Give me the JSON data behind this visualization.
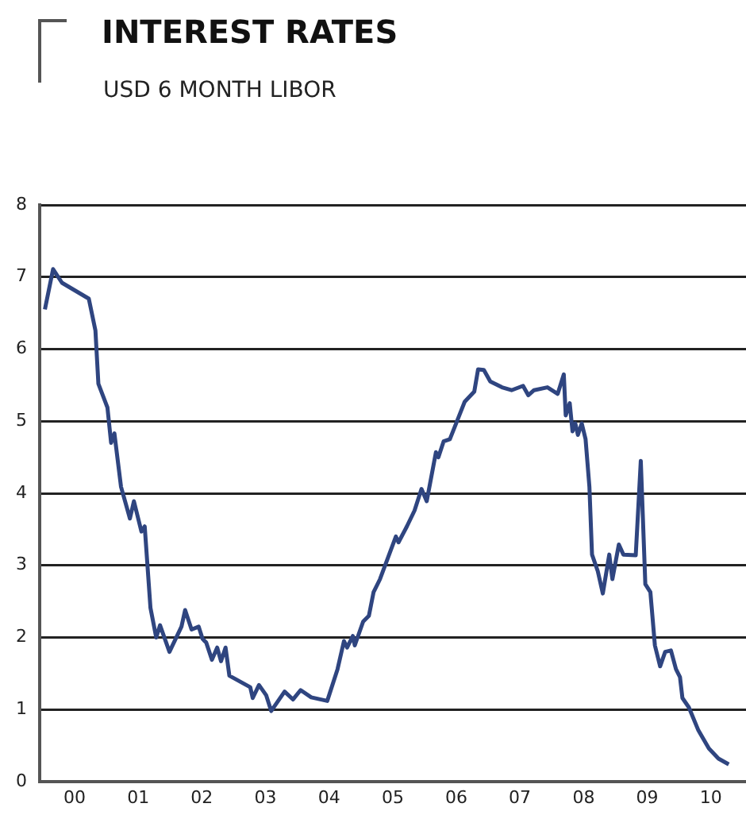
{
  "chart_data": {
    "type": "line",
    "title": "INTEREST RATES",
    "subtitle": "USD 6 MONTH LIBOR",
    "xlim": [
      "1999-12-13",
      "2011-01-19"
    ],
    "xticks": [
      {
        "value": "2000-07-01",
        "label": "00"
      },
      {
        "value": "2001-07-01",
        "label": "01"
      },
      {
        "value": "2002-07-01",
        "label": "02"
      },
      {
        "value": "2003-07-01",
        "label": "03"
      },
      {
        "value": "2004-07-01",
        "label": "04"
      },
      {
        "value": "2005-07-01",
        "label": "05"
      },
      {
        "value": "2006-07-01",
        "label": "06"
      },
      {
        "value": "2007-07-01",
        "label": "07"
      },
      {
        "value": "2008-07-01",
        "label": "08"
      },
      {
        "value": "2009-07-01",
        "label": "09"
      },
      {
        "value": "2010-07-01",
        "label": "10"
      }
    ],
    "ylim": [
      0,
      8
    ],
    "yticks": [
      0,
      1,
      2,
      3,
      4,
      5,
      6,
      7,
      8
    ],
    "grid": "y",
    "legend": false,
    "series": [
      {
        "color": "#2f4580",
        "x": [
          "2000-01-12",
          "2000-02-28",
          "2000-04-19",
          "2000-07-05",
          "2000-09-20",
          "2000-10-28",
          "2000-11-14",
          "2001-01-05",
          "2001-01-26",
          "2001-02-14",
          "2001-03-24",
          "2001-05-14",
          "2001-06-06",
          "2001-07-19",
          "2001-08-07",
          "2001-09-09",
          "2001-10-12",
          "2001-11-03",
          "2001-12-27",
          "2002-03-06",
          "2002-03-27",
          "2002-05-03",
          "2002-06-13",
          "2002-07-05",
          "2002-07-26",
          "2002-08-28",
          "2002-09-27",
          "2002-10-19",
          "2002-11-14",
          "2002-12-06",
          "2003-04-05",
          "2003-04-19",
          "2003-05-25",
          "2003-07-05",
          "2003-08-03",
          "2003-10-19",
          "2003-12-06",
          "2004-01-19",
          "2004-03-20",
          "2004-06-20",
          "2004-08-18",
          "2004-09-24",
          "2004-10-12",
          "2004-11-14",
          "2004-11-25",
          "2005-01-12",
          "2005-02-14",
          "2005-03-13",
          "2005-04-19",
          "2005-07-19",
          "2005-08-03",
          "2005-09-20",
          "2005-11-03",
          "2005-12-13",
          "2006-01-12",
          "2006-03-06",
          "2006-03-20",
          "2006-04-19",
          "2006-05-25",
          "2006-08-18",
          "2006-10-12",
          "2006-11-03",
          "2006-12-06",
          "2007-01-12",
          "2007-03-20",
          "2007-05-14",
          "2007-07-19",
          "2007-08-18",
          "2007-09-20",
          "2007-12-06",
          "2008-02-03",
          "2008-03-09",
          "2008-03-20",
          "2008-04-12",
          "2008-04-28",
          "2008-05-14",
          "2008-05-29",
          "2008-06-20",
          "2008-07-12",
          "2008-08-03",
          "2008-08-18",
          "2008-09-20",
          "2008-10-19",
          "2008-11-25",
          "2008-12-13",
          "2009-01-19",
          "2009-02-14",
          "2009-04-26",
          "2009-05-25",
          "2009-06-20",
          "2009-07-19",
          "2009-08-14",
          "2009-09-13",
          "2009-10-12",
          "2009-11-14",
          "2009-12-13",
          "2010-01-05",
          "2010-01-19",
          "2010-02-25",
          "2010-04-19",
          "2010-06-20",
          "2010-08-14",
          "2010-10-12"
        ],
        "values": [
          6.55,
          7.11,
          6.92,
          6.81,
          6.7,
          6.26,
          5.52,
          5.19,
          4.7,
          4.83,
          4.09,
          3.65,
          3.89,
          3.47,
          3.54,
          2.41,
          2.0,
          2.17,
          1.8,
          2.15,
          2.38,
          2.11,
          2.15,
          1.98,
          1.93,
          1.69,
          1.86,
          1.67,
          1.86,
          1.47,
          1.31,
          1.16,
          1.34,
          1.2,
          0.98,
          1.25,
          1.14,
          1.27,
          1.17,
          1.12,
          1.56,
          1.95,
          1.86,
          2.02,
          1.89,
          2.22,
          2.3,
          2.63,
          2.81,
          3.4,
          3.32,
          3.54,
          3.76,
          4.06,
          3.89,
          4.57,
          4.5,
          4.72,
          4.75,
          5.27,
          5.41,
          5.72,
          5.71,
          5.55,
          5.47,
          5.43,
          5.49,
          5.36,
          5.43,
          5.47,
          5.38,
          5.65,
          5.08,
          5.25,
          4.86,
          4.97,
          4.81,
          4.97,
          4.75,
          4.09,
          3.15,
          2.92,
          2.61,
          3.15,
          2.81,
          3.29,
          3.15,
          3.14,
          4.45,
          2.74,
          2.63,
          1.89,
          1.6,
          1.8,
          1.82,
          1.56,
          1.45,
          1.16,
          1.03,
          0.72,
          0.46,
          0.32,
          0.24
        ]
      }
    ]
  }
}
